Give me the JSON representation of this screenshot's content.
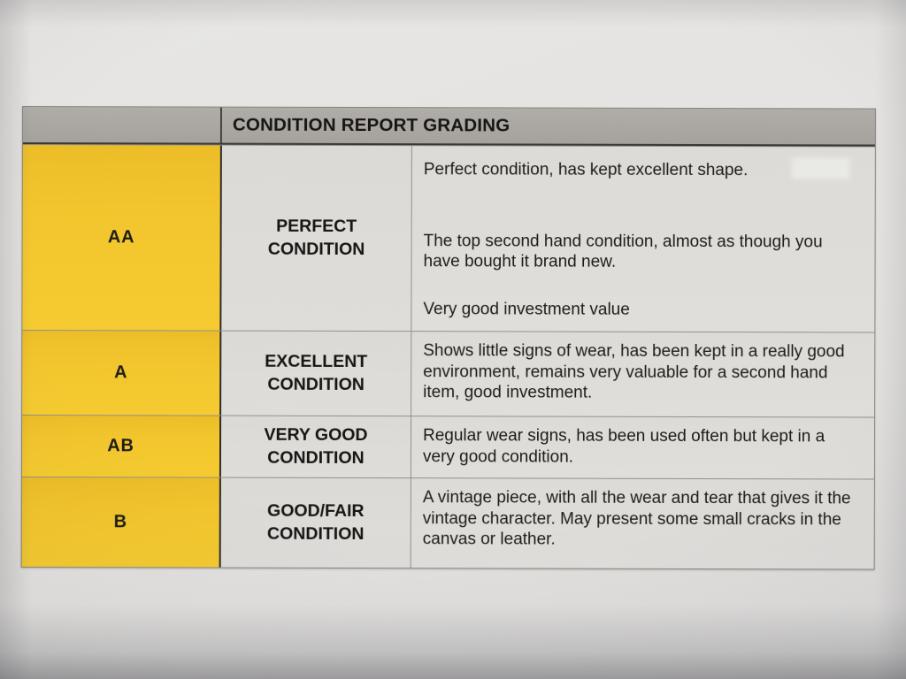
{
  "table": {
    "title": "CONDITION REPORT GRADING",
    "rows": [
      {
        "grade": "AA",
        "condition": "PERFECT CONDITION",
        "description": [
          "Perfect condition, has kept excellent shape.",
          "The top second hand condition, almost as though you have bought it brand new.",
          "Very good investment value"
        ]
      },
      {
        "grade": "A",
        "condition": "EXCELLENT CONDITION",
        "description": [
          "Shows little signs of wear, has been kept in a really good environment, remains very valuable for a second hand item, good investment."
        ]
      },
      {
        "grade": "AB",
        "condition": "VERY GOOD CONDITION",
        "description": [
          "Regular wear signs, has been used often but kept in a very good condition."
        ]
      },
      {
        "grade": "B",
        "condition": "GOOD/FAIR CONDITION",
        "description": [
          "A vintage piece, with all the wear and tear that gives it the vintage character. May present some small cracks in the canvas or leather."
        ]
      }
    ],
    "colors": {
      "grade_column": "#f2c52d",
      "header_bar": "#aca8a3",
      "cell_background": "#dedcd8",
      "paper": "#e4e3e1",
      "text": "#1b1b1b"
    }
  }
}
